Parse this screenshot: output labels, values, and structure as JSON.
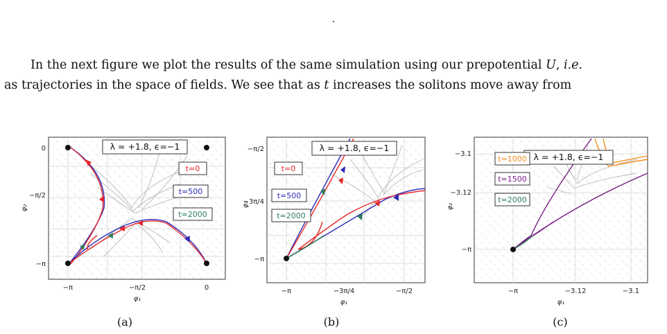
{
  "top_mark": ".",
  "paragraph": {
    "line1_pre": "In the next figure we plot the results of the same simulation using our prepotential ",
    "line1_var": "U",
    "line1_mid": ", ",
    "line1_ie": "i.e.",
    "line2_pre": "as trajectories in the space of fields. We see that as ",
    "line2_var": "t",
    "line2_post": " increases the solitons move away from"
  },
  "colors": {
    "red": "#e8262a",
    "blue": "#2a2ab8",
    "green": "#2e7d5b",
    "orange": "#f0901e",
    "purple": "#7a1f86",
    "stream": "#b8b8b8",
    "grid": "#d4d4d4"
  },
  "panels": [
    {
      "caption": "(a)",
      "box_title": "λ = +1.8, ϵ=−1",
      "xlabel": "φ₁",
      "ylabel": "φ₂",
      "xticks": [
        "−π",
        "−π/2",
        "0"
      ],
      "yticks": [
        "0",
        "−π/2",
        "−π"
      ],
      "legend": [
        {
          "label": "t=0",
          "color": "#e8262a"
        },
        {
          "label": "t=500",
          "color": "#2a2ab8"
        },
        {
          "label": "t=2000",
          "color": "#2e7d5b"
        }
      ]
    },
    {
      "caption": "(b)",
      "box_title": "λ = +1.8, ϵ=−1",
      "xlabel": "φ₁",
      "ylabel": "φ₂",
      "xticks": [
        "−π",
        "−3π/4",
        "−π/2"
      ],
      "yticks": [
        "−π/2",
        "−3π/4",
        "−π"
      ],
      "legend": [
        {
          "label": "t=0",
          "color": "#e8262a"
        },
        {
          "label": "t=500",
          "color": "#2a2ab8"
        },
        {
          "label": "t=2000",
          "color": "#2e7d5b"
        }
      ]
    },
    {
      "caption": "(c)",
      "box_title": "λ = +1.8, ϵ=−1",
      "xlabel": "φ₁",
      "ylabel": "φ₂",
      "xticks": [
        "−π",
        "−3.12",
        "−3.1"
      ],
      "yticks": [
        "−3.1",
        "−3.12",
        "−π"
      ],
      "legend": [
        {
          "label": "t=1000",
          "color": "#f0901e"
        },
        {
          "label": "t=1500",
          "color": "#7a1f86"
        },
        {
          "label": "t=2000",
          "color": "#2e7d5b"
        }
      ]
    }
  ]
}
